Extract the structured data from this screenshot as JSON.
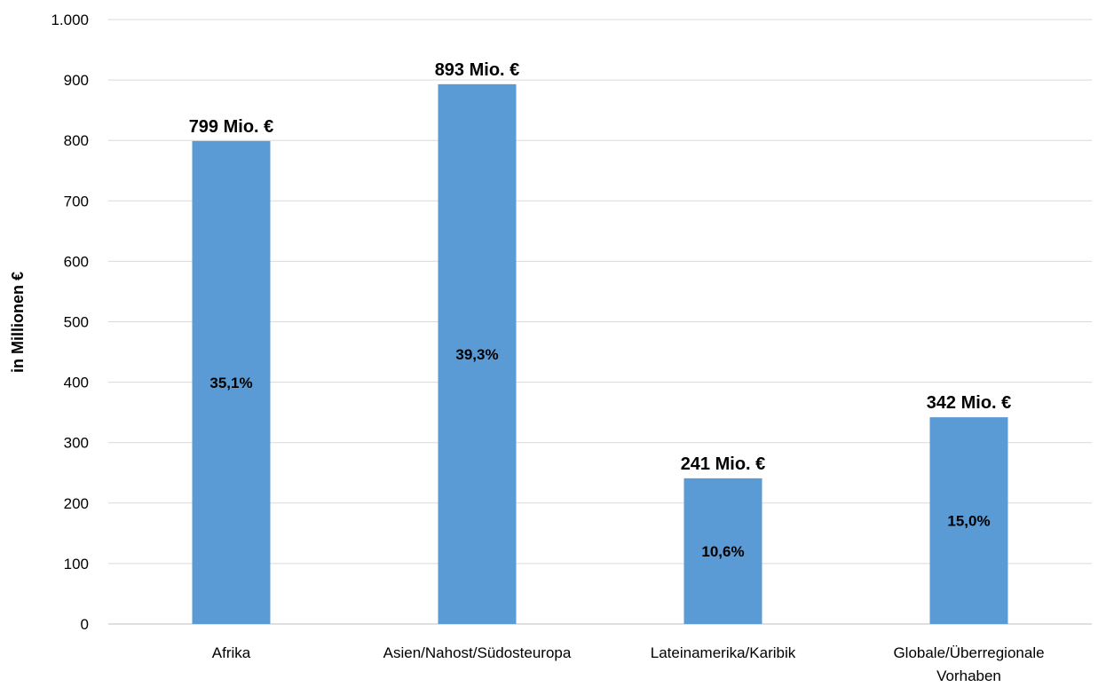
{
  "chart_data": {
    "type": "bar",
    "ylabel": "in Millionen €",
    "ylim": [
      0,
      1000
    ],
    "yticks": [
      0,
      100,
      200,
      300,
      400,
      500,
      600,
      700,
      800,
      900,
      1000
    ],
    "ytick_labels": [
      "0",
      "100",
      "200",
      "300",
      "400",
      "500",
      "600",
      "700",
      "800",
      "900",
      "1.000"
    ],
    "grid": true,
    "legend": "none",
    "bar_color": "#5b9bd5",
    "categories": [
      [
        "Afrika"
      ],
      [
        "Asien/Nahost/Südosteuropa"
      ],
      [
        "Lateinamerika/Karibik"
      ],
      [
        "Globale/Überregionale",
        "Vorhaben"
      ]
    ],
    "values": [
      799,
      893,
      241,
      342
    ],
    "value_labels": [
      "799 Mio. €",
      "893 Mio. €",
      "241 Mio. €",
      "342 Mio. €"
    ],
    "share_labels": [
      "35,1%",
      "39,3%",
      "10,6%",
      "15,0%"
    ]
  }
}
